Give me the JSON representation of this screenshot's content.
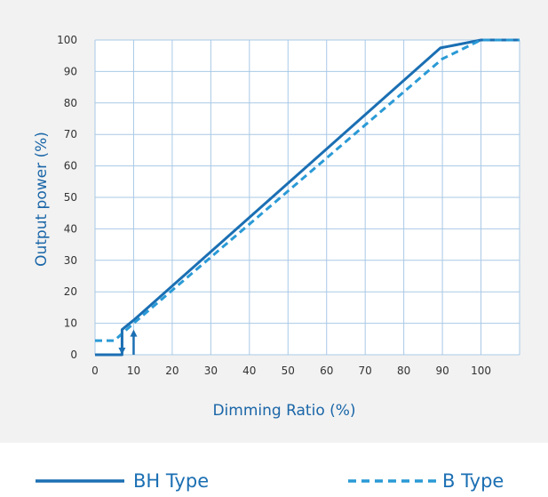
{
  "chart_data": {
    "type": "line",
    "xlabel": "Dimming Ratio (%)",
    "ylabel": "Output power (%)",
    "xlim": [
      0,
      110
    ],
    "ylim": [
      0,
      100
    ],
    "x_ticks": [
      0,
      10,
      20,
      30,
      40,
      50,
      60,
      70,
      80,
      90,
      100
    ],
    "y_ticks": [
      0,
      10,
      20,
      30,
      40,
      50,
      60,
      70,
      80,
      90,
      100
    ],
    "x_tick_labels": [
      "0",
      "10",
      "20",
      "30",
      "40",
      "50",
      "60",
      "70",
      "80",
      "90",
      "100"
    ],
    "y_tick_labels": [
      "0",
      "10",
      "20",
      "30",
      "40",
      "50",
      "60",
      "70",
      "80",
      "90",
      "100"
    ],
    "grid": true,
    "legend": "bottom",
    "series": [
      {
        "name": "BH Type",
        "style": "solid",
        "color": "#1b6fb3",
        "points": [
          [
            0,
            0
          ],
          [
            7,
            0
          ],
          [
            7,
            8
          ],
          [
            10,
            11
          ],
          [
            89.5,
            97.5
          ],
          [
            100,
            100
          ],
          [
            110,
            100
          ]
        ],
        "hysteresis": [
          {
            "x": 10,
            "from_y": 0,
            "to_y": 8,
            "direction": "up"
          },
          {
            "x": 7,
            "from_y": 8,
            "to_y": 0,
            "direction": "down"
          }
        ]
      },
      {
        "name": "B Type",
        "style": "dashed",
        "color": "#2a9ad6",
        "points": [
          [
            0,
            4.5
          ],
          [
            5,
            4.5
          ],
          [
            10,
            10
          ],
          [
            90,
            94
          ],
          [
            100,
            100
          ],
          [
            110,
            100
          ]
        ]
      }
    ]
  },
  "legend": {
    "bh_label": "BH Type",
    "b_label": "B Type"
  }
}
